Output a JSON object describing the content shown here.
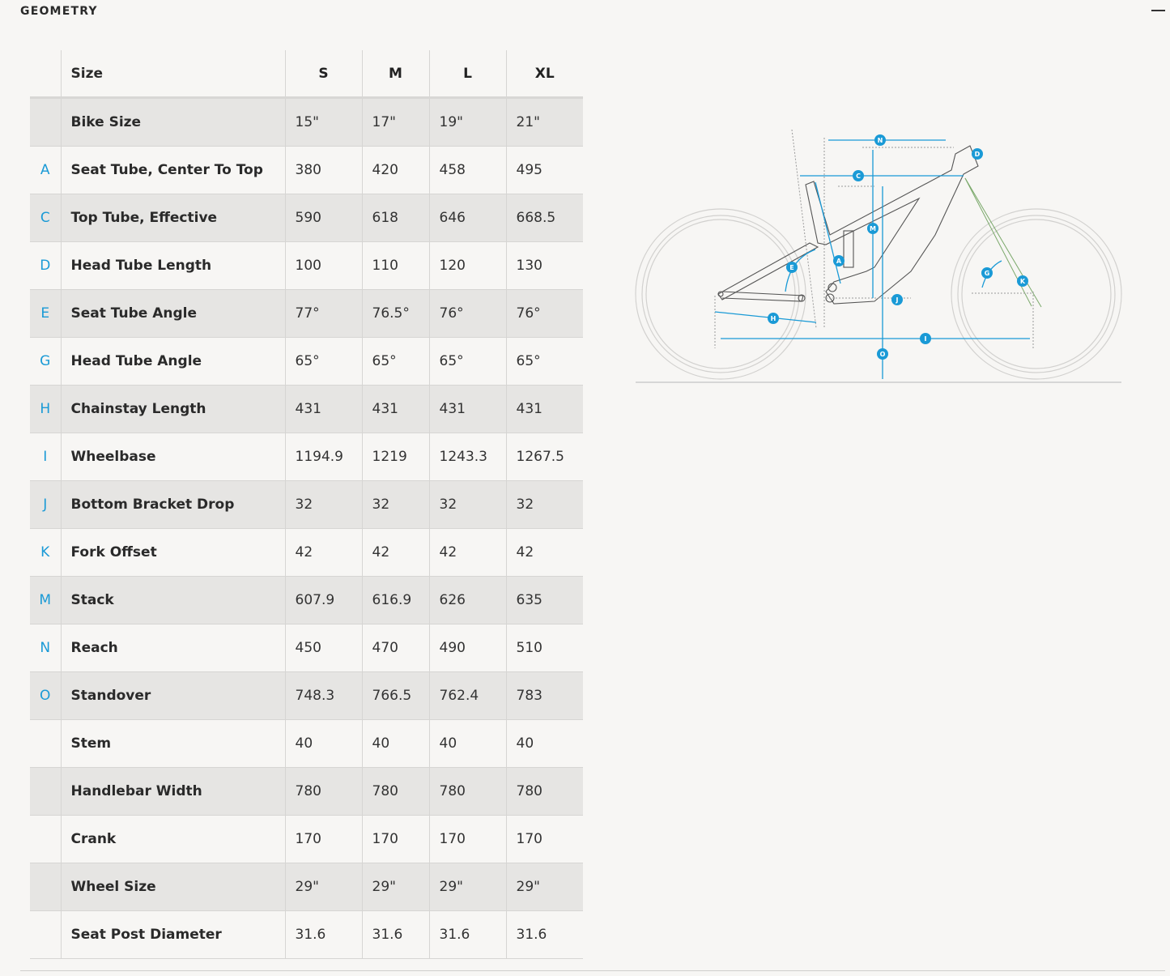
{
  "section_title": "GEOMETRY",
  "collapse_icon": "minus-icon",
  "accent_color": "#1a9ad6",
  "table": {
    "header": {
      "label": "Size",
      "sizes": [
        "S",
        "M",
        "L",
        "XL"
      ]
    },
    "rows": [
      {
        "letter": "",
        "label": "Bike Size",
        "values": [
          "15\"",
          "17\"",
          "19\"",
          "21\""
        ]
      },
      {
        "letter": "A",
        "label": "Seat Tube, Center To Top",
        "values": [
          "380",
          "420",
          "458",
          "495"
        ]
      },
      {
        "letter": "C",
        "label": "Top Tube, Effective",
        "values": [
          "590",
          "618",
          "646",
          "668.5"
        ]
      },
      {
        "letter": "D",
        "label": "Head Tube Length",
        "values": [
          "100",
          "110",
          "120",
          "130"
        ]
      },
      {
        "letter": "E",
        "label": "Seat Tube Angle",
        "values": [
          "77°",
          "76.5°",
          "76°",
          "76°"
        ]
      },
      {
        "letter": "G",
        "label": "Head Tube Angle",
        "values": [
          "65°",
          "65°",
          "65°",
          "65°"
        ]
      },
      {
        "letter": "H",
        "label": "Chainstay Length",
        "values": [
          "431",
          "431",
          "431",
          "431"
        ]
      },
      {
        "letter": "I",
        "label": "Wheelbase",
        "values": [
          "1194.9",
          "1219",
          "1243.3",
          "1267.5"
        ]
      },
      {
        "letter": "J",
        "label": "Bottom Bracket Drop",
        "values": [
          "32",
          "32",
          "32",
          "32"
        ]
      },
      {
        "letter": "K",
        "label": "Fork Offset",
        "values": [
          "42",
          "42",
          "42",
          "42"
        ]
      },
      {
        "letter": "M",
        "label": "Stack",
        "values": [
          "607.9",
          "616.9",
          "626",
          "635"
        ]
      },
      {
        "letter": "N",
        "label": "Reach",
        "values": [
          "450",
          "470",
          "490",
          "510"
        ]
      },
      {
        "letter": "O",
        "label": "Standover",
        "values": [
          "748.3",
          "766.5",
          "762.4",
          "783"
        ]
      },
      {
        "letter": "",
        "label": "Stem",
        "values": [
          "40",
          "40",
          "40",
          "40"
        ]
      },
      {
        "letter": "",
        "label": "Handlebar Width",
        "values": [
          "780",
          "780",
          "780",
          "780"
        ]
      },
      {
        "letter": "",
        "label": "Crank",
        "values": [
          "170",
          "170",
          "170",
          "170"
        ]
      },
      {
        "letter": "",
        "label": "Wheel Size",
        "values": [
          "29\"",
          "29\"",
          "29\"",
          "29\""
        ]
      },
      {
        "letter": "",
        "label": "Seat Post Diameter",
        "values": [
          "31.6",
          "31.6",
          "31.6",
          "31.6"
        ]
      }
    ]
  },
  "diagram": {
    "labels": {
      "N": "N",
      "D": "D",
      "C": "C",
      "M": "M",
      "A": "A",
      "E": "E",
      "G": "G",
      "K": "K",
      "J": "J",
      "H": "H",
      "I": "I",
      "O": "O"
    }
  }
}
